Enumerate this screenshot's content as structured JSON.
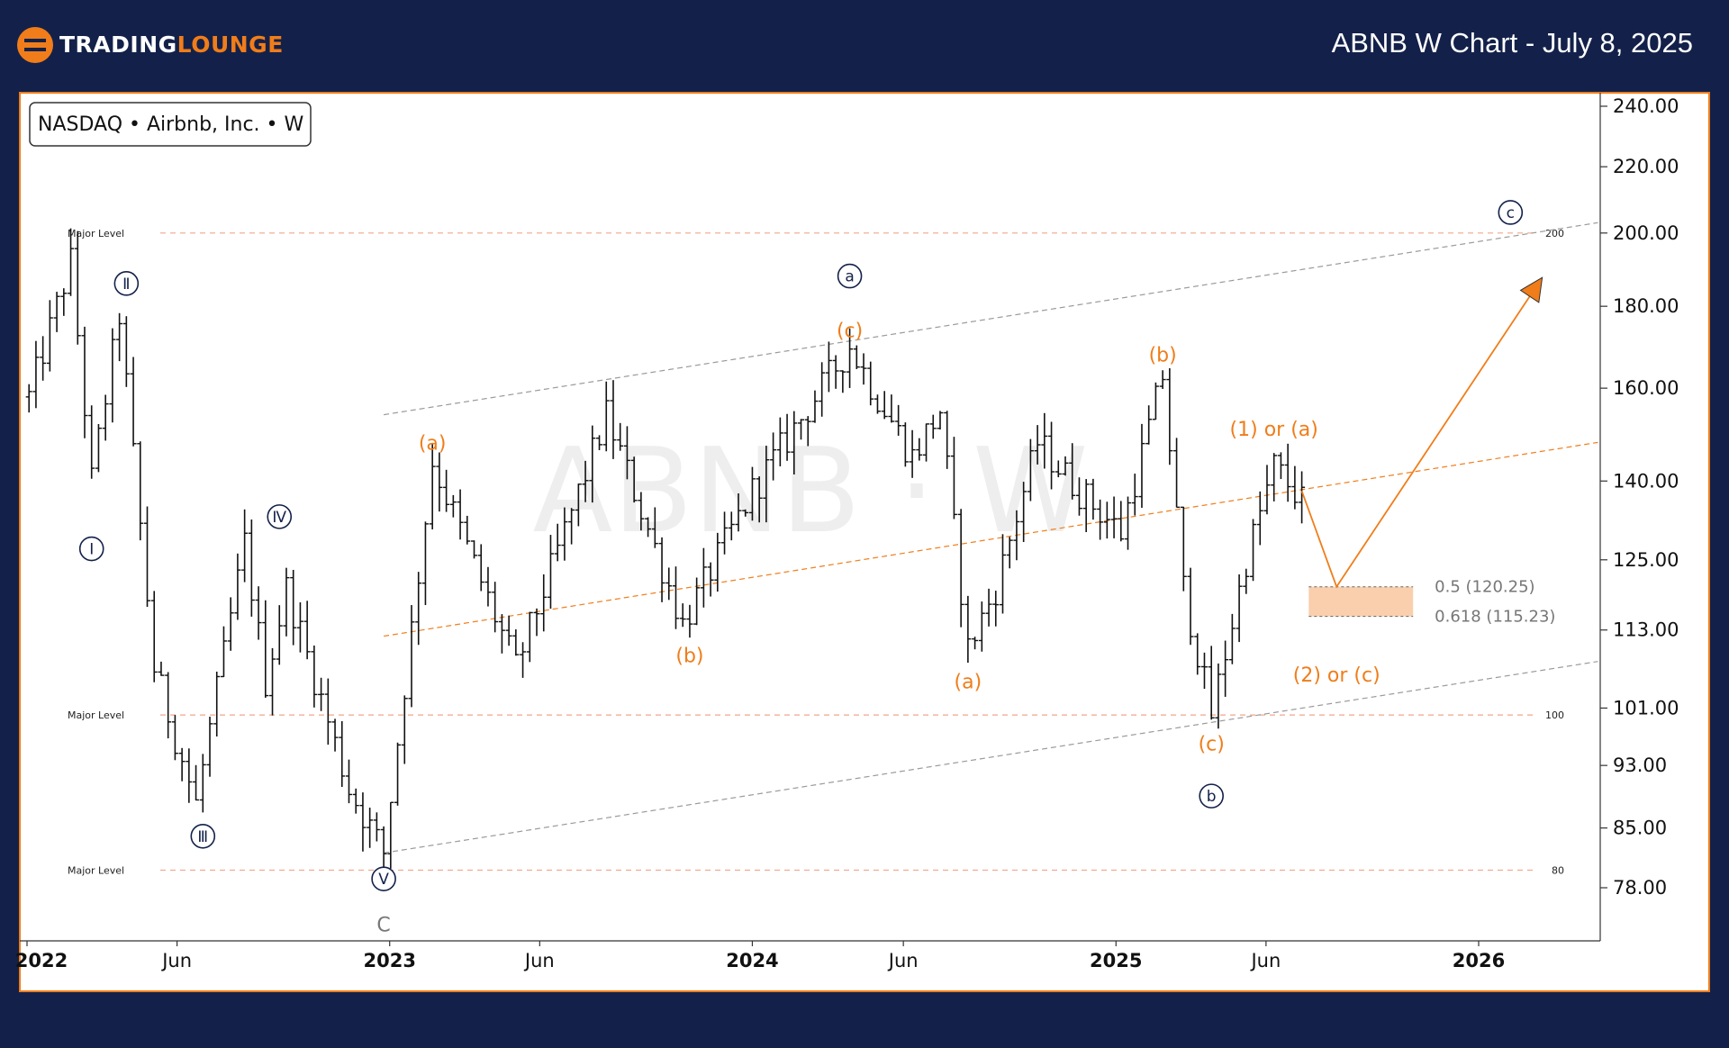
{
  "header": {
    "brand_name": "TRADINGLOUNGE",
    "brand_part1": "TRADING",
    "brand_part2": "LOUNGE",
    "chart_title": "ABNB W Chart - July 8, 2025"
  },
  "colors": {
    "navy": "#13214a",
    "orange": "#f07d1a",
    "level_line": "#f2a58a",
    "channel_gray": "#9a9a9a",
    "fib_zone": "#f9cfae"
  },
  "chart_data": {
    "type": "bar",
    "title": "ABNB W Chart - July 8, 2025",
    "symbol_label": "NASDAQ • Airbnb, Inc. • W",
    "watermark": "ABNB · W",
    "scale": "log",
    "ylim": [
      70,
      245
    ],
    "y_ticks": [
      "240.00",
      "220.00",
      "200.00",
      "180.00",
      "160.00",
      "140.00",
      "125.00",
      "113.00",
      "101.00",
      "93.00",
      "85.00",
      "78.00"
    ],
    "y_tick_values": [
      240,
      220,
      200,
      180,
      160,
      140,
      125,
      113,
      101,
      93,
      85,
      78
    ],
    "x_ticks": [
      {
        "label": "2022",
        "date": "2022-01-01",
        "year": true
      },
      {
        "label": "Jun",
        "date": "2022-06-01",
        "year": false
      },
      {
        "label": "2023",
        "date": "2023-01-01",
        "year": true
      },
      {
        "label": "Jun",
        "date": "2023-06-01",
        "year": false
      },
      {
        "label": "2024",
        "date": "2024-01-01",
        "year": true
      },
      {
        "label": "Jun",
        "date": "2024-06-01",
        "year": false
      },
      {
        "label": "2025",
        "date": "2025-01-01",
        "year": true
      },
      {
        "label": "Jun",
        "date": "2025-06-01",
        "year": false
      },
      {
        "label": "2026",
        "date": "2026-01-01",
        "year": true
      }
    ],
    "xlim": [
      "2022-01-01",
      "2026-05-01"
    ],
    "anchors": [
      {
        "date": "2022-01-03",
        "price": 158
      },
      {
        "date": "2022-02-14",
        "price": 192
      },
      {
        "date": "2022-03-07",
        "price": 140
      },
      {
        "date": "2022-04-04",
        "price": 178
      },
      {
        "date": "2022-05-09",
        "price": 107
      },
      {
        "date": "2022-06-20",
        "price": 88
      },
      {
        "date": "2022-08-08",
        "price": 128
      },
      {
        "date": "2022-08-29",
        "price": 105
      },
      {
        "date": "2022-09-19",
        "price": 120
      },
      {
        "date": "2022-11-21",
        "price": 90
      },
      {
        "date": "2022-12-26",
        "price": 82
      },
      {
        "date": "2023-02-13",
        "price": 144
      },
      {
        "date": "2023-05-08",
        "price": 107
      },
      {
        "date": "2023-08-07",
        "price": 154
      },
      {
        "date": "2023-10-23",
        "price": 114
      },
      {
        "date": "2024-01-01",
        "price": 138
      },
      {
        "date": "2024-04-08",
        "price": 170
      },
      {
        "date": "2024-05-06",
        "price": 158
      },
      {
        "date": "2024-06-10",
        "price": 145
      },
      {
        "date": "2024-07-08",
        "price": 155
      },
      {
        "date": "2024-08-05",
        "price": 110
      },
      {
        "date": "2024-09-02",
        "price": 120
      },
      {
        "date": "2024-10-14",
        "price": 148
      },
      {
        "date": "2024-11-25",
        "price": 138
      },
      {
        "date": "2025-01-06",
        "price": 130
      },
      {
        "date": "2025-02-17",
        "price": 163
      },
      {
        "date": "2025-03-10",
        "price": 120
      },
      {
        "date": "2025-04-07",
        "price": 100
      },
      {
        "date": "2025-05-12",
        "price": 125
      },
      {
        "date": "2025-06-09",
        "price": 143
      },
      {
        "date": "2025-07-07",
        "price": 136
      }
    ],
    "major_levels": [
      {
        "price": 200,
        "label": "Major Level",
        "value_label": "200"
      },
      {
        "price": 100,
        "label": "Major Level",
        "value_label": "100"
      },
      {
        "price": 80,
        "label": "Major Level",
        "value_label": "80"
      }
    ],
    "channel_lines": [
      {
        "name": "upper",
        "color": "gray",
        "points": [
          {
            "date": "2022-12-26",
            "price": 154
          },
          {
            "date": "2026-05-01",
            "price": 203
          }
        ]
      },
      {
        "name": "middle",
        "color": "orange",
        "points": [
          {
            "date": "2022-12-26",
            "price": 112
          },
          {
            "date": "2026-05-01",
            "price": 148
          }
        ]
      },
      {
        "name": "lower",
        "color": "gray",
        "points": [
          {
            "date": "2022-12-26",
            "price": 82
          },
          {
            "date": "2026-05-01",
            "price": 108
          }
        ]
      }
    ],
    "fib_zone": {
      "date_start": "2025-07-14",
      "date_end": "2025-10-27",
      "top": 120.25,
      "bottom": 115.23
    },
    "fib_levels": [
      {
        "label": "0.5 (120.25)",
        "price": 120.25
      },
      {
        "label": "0.618 (115.23)",
        "price": 115.23
      }
    ],
    "projection": [
      {
        "date": "2025-07-07",
        "price": 138
      },
      {
        "date": "2025-08-11",
        "price": 120.25
      },
      {
        "date": "2026-03-02",
        "price": 186
      }
    ],
    "wave_labels": [
      {
        "text": "Ⅰ",
        "style": "circle-roman",
        "date": "2022-03-07",
        "price": 127
      },
      {
        "text": "Ⅱ",
        "style": "circle-roman",
        "date": "2022-04-11",
        "price": 186
      },
      {
        "text": "Ⅲ",
        "style": "circle-roman",
        "date": "2022-06-27",
        "price": 84
      },
      {
        "text": "Ⅳ",
        "style": "circle-roman",
        "date": "2022-09-12",
        "price": 133
      },
      {
        "text": "Ⅴ",
        "style": "circle-roman",
        "date": "2022-12-26",
        "price": 79
      },
      {
        "text": "C",
        "style": "gray",
        "date": "2022-12-26",
        "price": 74
      },
      {
        "text": "(a)",
        "style": "orange",
        "date": "2023-02-13",
        "price": 148
      },
      {
        "text": "(b)",
        "style": "orange",
        "date": "2023-10-30",
        "price": 109
      },
      {
        "text": "(c)",
        "style": "orange",
        "date": "2024-04-08",
        "price": 174
      },
      {
        "text": "a",
        "style": "circle",
        "date": "2024-04-08",
        "price": 188
      },
      {
        "text": "(a)",
        "style": "orange",
        "date": "2024-08-05",
        "price": 105
      },
      {
        "text": "(b)",
        "style": "orange",
        "date": "2025-02-17",
        "price": 168
      },
      {
        "text": "(c)",
        "style": "orange",
        "date": "2025-04-07",
        "price": 96
      },
      {
        "text": "b",
        "style": "circle",
        "date": "2025-04-07",
        "price": 89
      },
      {
        "text": "(1) or (a)",
        "style": "orange",
        "date": "2025-06-09",
        "price": 151
      },
      {
        "text": "(2) or (c)",
        "style": "orange",
        "date": "2025-08-11",
        "price": 106
      },
      {
        "text": "c",
        "style": "circle",
        "date": "2026-02-02",
        "price": 206
      }
    ]
  }
}
